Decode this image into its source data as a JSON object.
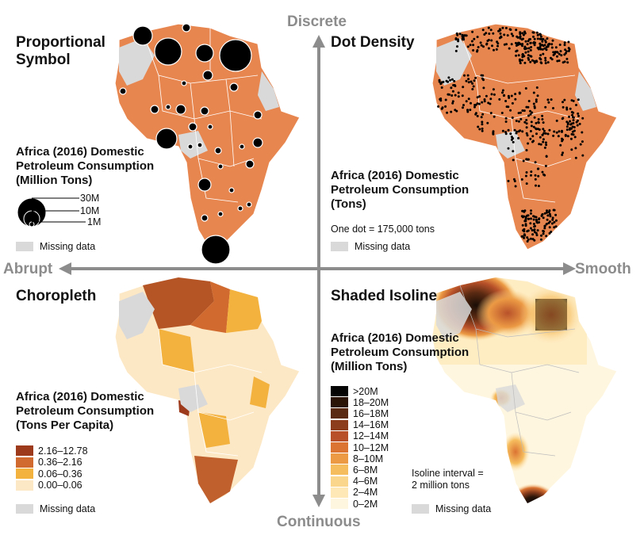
{
  "axes": {
    "top": "Discrete",
    "bottom": "Continuous",
    "left": "Abrupt",
    "right": "Smooth"
  },
  "panels": {
    "proportional_symbol": {
      "title": [
        "Proportional",
        "Symbol"
      ],
      "legend_title": [
        "Africa (2016) Domestic",
        "Petroleum Consumption",
        "(Million Tons)"
      ],
      "legend_values": [
        "30M",
        "10M",
        "1M"
      ],
      "missing_label": "Missing data"
    },
    "dot_density": {
      "title": [
        "Dot Density"
      ],
      "legend_title": [
        "Africa (2016) Domestic",
        "Petroleum Consumption",
        "(Tons)"
      ],
      "dot_note": "One dot = 175,000 tons",
      "missing_label": "Missing data"
    },
    "choropleth": {
      "title": [
        "Choropleth"
      ],
      "legend_title": [
        "Africa (2016) Domestic",
        "Petroleum Consumption",
        "(Tons Per Capita)"
      ],
      "classes": [
        {
          "label": "2.16–12.78",
          "color": "#9e3a1c"
        },
        {
          "label": "0.36–2.16",
          "color": "#d06a2f"
        },
        {
          "label": "0.06–0.36",
          "color": "#f3b13e"
        },
        {
          "label": "0.00–0.06",
          "color": "#fde8c5"
        }
      ],
      "missing_label": "Missing data"
    },
    "shaded_isoline": {
      "title": [
        "Shaded Isoline"
      ],
      "legend_title": [
        "Africa (2016) Domestic",
        "Petroleum Consumption",
        "(Million Tons)"
      ],
      "classes": [
        {
          "label": ">20M",
          "color": "#050505"
        },
        {
          "label": "18–20M",
          "color": "#2a1408"
        },
        {
          "label": "16–18M",
          "color": "#5a2a12"
        },
        {
          "label": "14–16M",
          "color": "#8c3e1c"
        },
        {
          "label": "12–14M",
          "color": "#b8512a"
        },
        {
          "label": "10–12M",
          "color": "#db7433"
        },
        {
          "label": "8–10M",
          "color": "#ec9a44"
        },
        {
          "label": "6–8M",
          "color": "#f6bd5e"
        },
        {
          "label": "4–6M",
          "color": "#fad68c"
        },
        {
          "label": "2–4M",
          "color": "#fde8b6"
        },
        {
          "label": "0–2M",
          "color": "#fff6df"
        }
      ],
      "interval_note": [
        "Isoline interval =",
        "2 million tons"
      ],
      "missing_label": "Missing data"
    }
  },
  "colors": {
    "map_fill": "#e8864f",
    "missing": "#d9d9d9",
    "axis": "#8c8c8c"
  }
}
